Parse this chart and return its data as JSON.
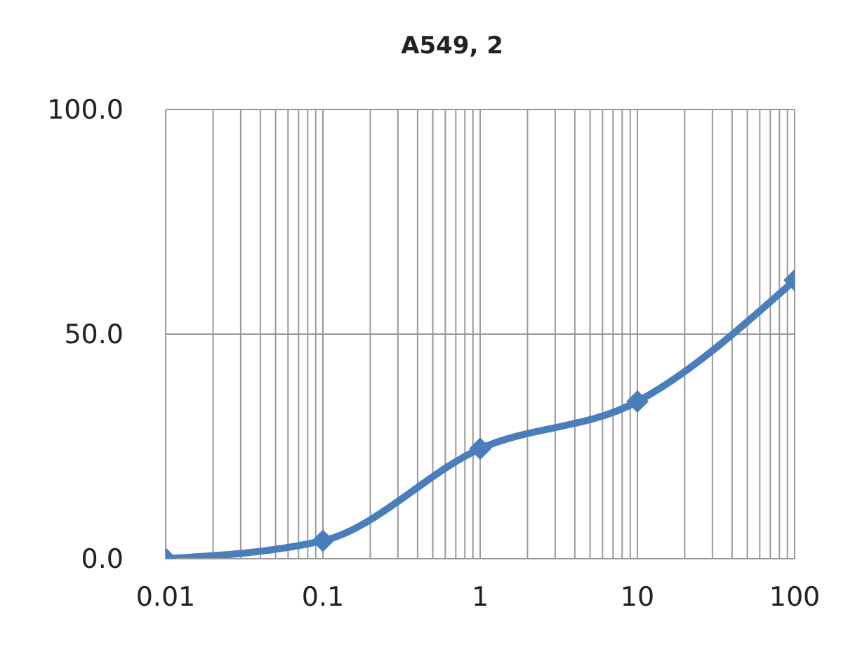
{
  "chart_data": {
    "type": "line",
    "title": "A549, 2",
    "x": [
      0.01,
      0.1,
      1,
      10,
      100
    ],
    "series": [
      {
        "color": "#4a7ebb",
        "values": [
          0,
          4,
          24.5,
          35,
          62
        ]
      }
    ],
    "xlim": [
      0.01,
      100
    ],
    "xticks": [
      0.01,
      0.1,
      1,
      10,
      100
    ],
    "log": "x",
    "ylim": [
      0,
      100
    ],
    "yticks": [
      {
        "value": 0,
        "label": "0.0"
      },
      {
        "value": 50,
        "label": "50.0"
      },
      {
        "value": 100,
        "label": "100.0"
      }
    ],
    "grid": true,
    "marker": "diamond",
    "line_style": "solid"
  }
}
